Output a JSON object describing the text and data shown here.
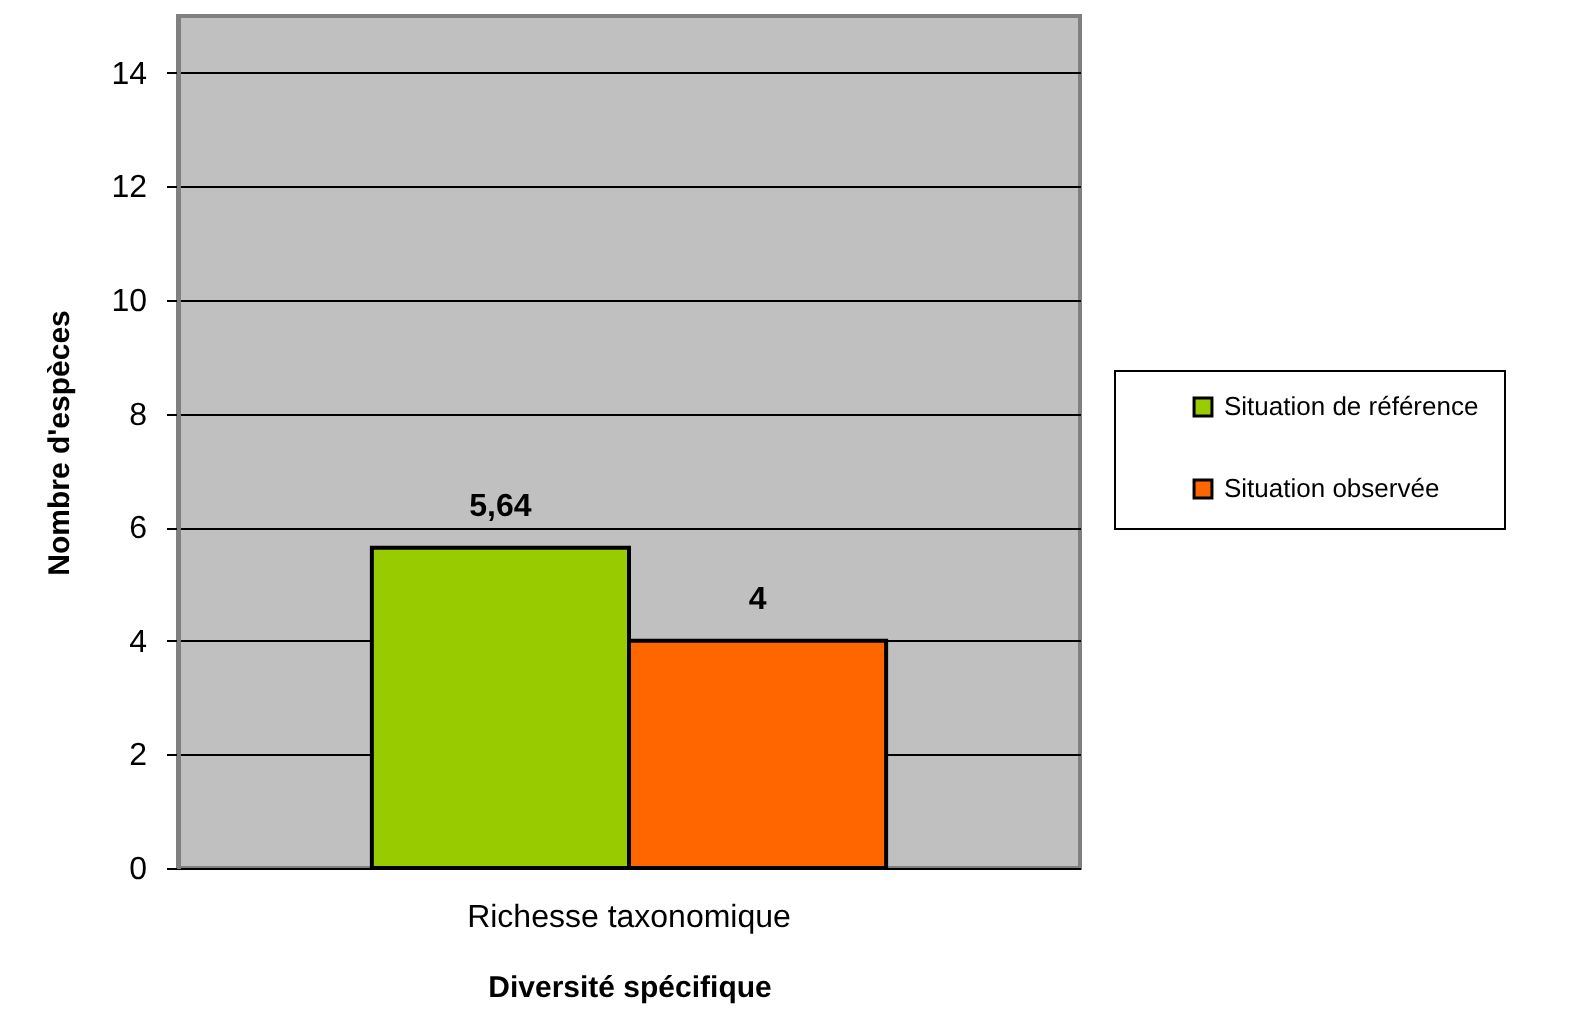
{
  "chart_data": {
    "type": "bar",
    "xlabel": "Diversité spécifique",
    "ylabel": "Nombre d'espèces",
    "categories": [
      "Richesse taxonomique"
    ],
    "series": [
      {
        "name": "Situation de référence",
        "color": "#99cc00",
        "values": [
          5.64
        ],
        "value_labels": [
          "5,64"
        ]
      },
      {
        "name": "Situation observée",
        "color": "#ff6600",
        "values": [
          4
        ],
        "value_labels": [
          "4"
        ]
      }
    ],
    "ylim": [
      0,
      15
    ],
    "yticks": [
      0,
      2,
      4,
      6,
      8,
      10,
      12,
      14
    ],
    "grid": "y",
    "legend": "right"
  }
}
